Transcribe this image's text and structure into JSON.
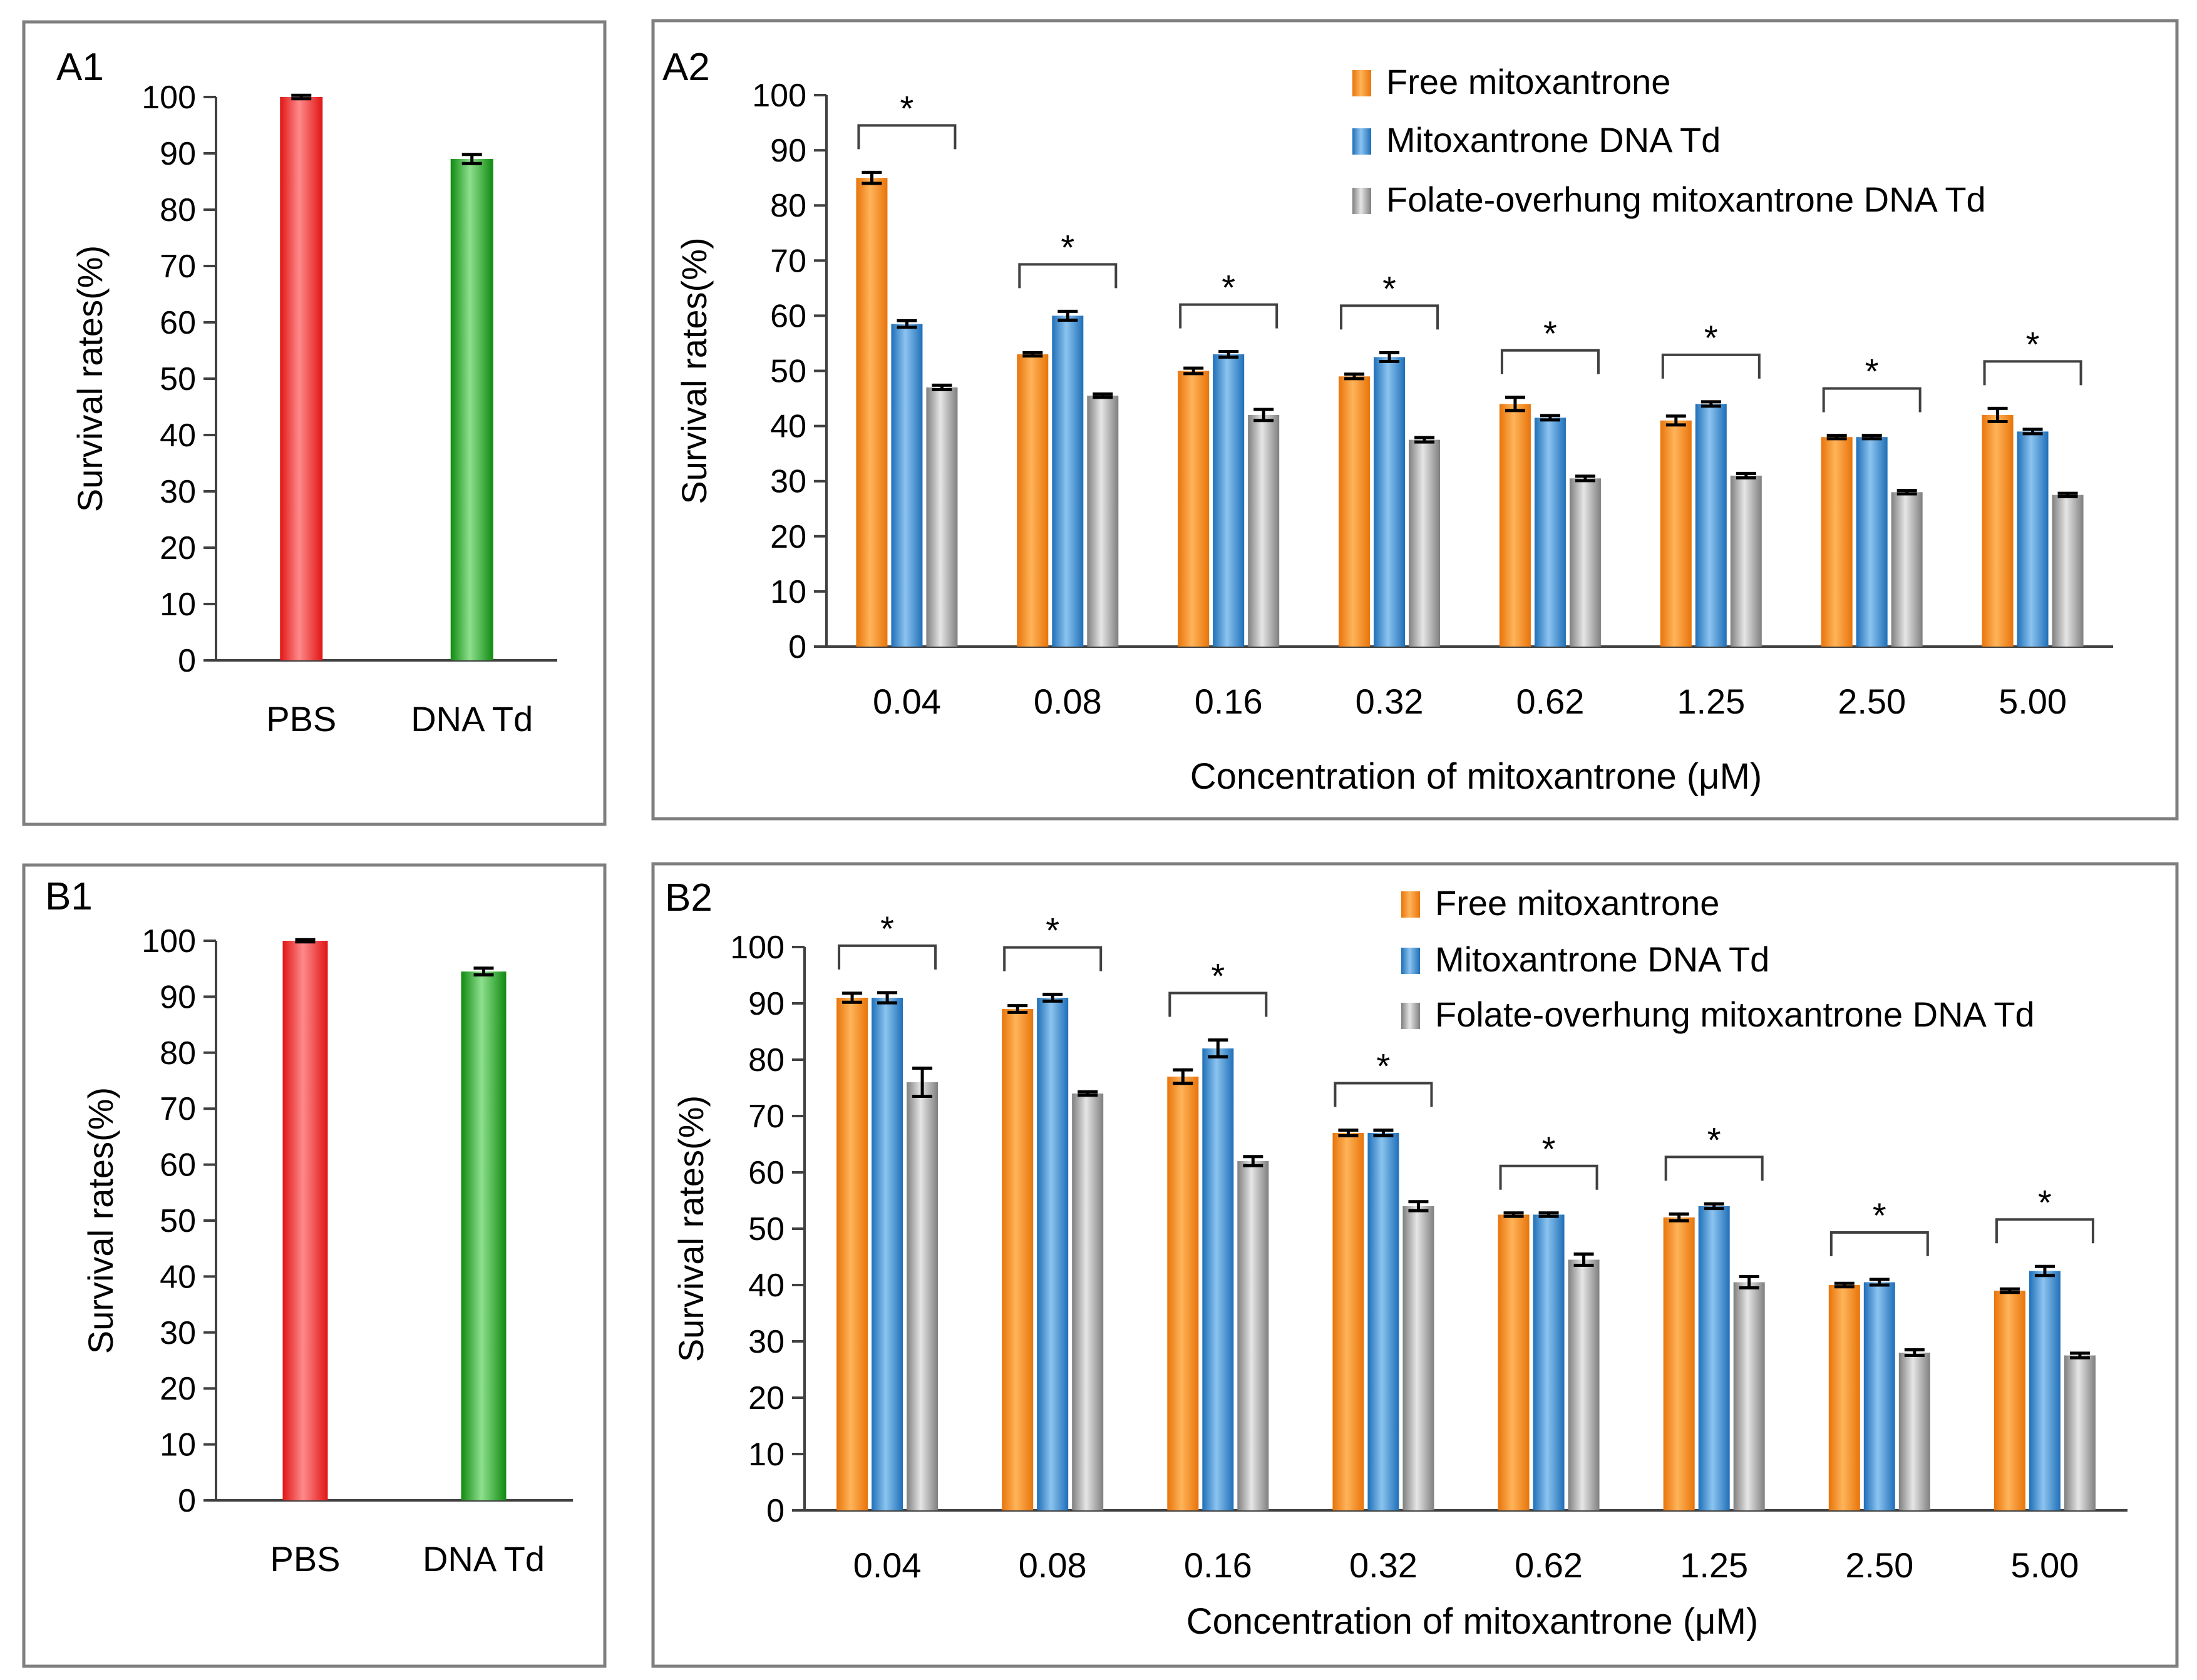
{
  "colors": {
    "free": "#f58a1f",
    "td": "#3a8fd6",
    "folate": "#a6a6a6",
    "pbs": "#ee2a2a",
    "dna_td": "#2aa42a"
  },
  "chart_data": [
    {
      "id": "A1",
      "panel_label": "A1",
      "type": "bar",
      "categories": [
        "PBS",
        "DNA Td"
      ],
      "values": [
        100,
        89
      ],
      "errors": [
        0.3,
        0.8
      ],
      "bar_colors": [
        "pbs",
        "dna_td"
      ],
      "ylabel": "Survival rates(%)",
      "xlabel": "",
      "ylim": [
        0,
        100
      ],
      "yticks": [
        "0",
        "10",
        "20",
        "30",
        "40",
        "50",
        "60",
        "70",
        "80",
        "90",
        "100"
      ]
    },
    {
      "id": "A2",
      "panel_label": "A2",
      "type": "bar",
      "categories": [
        "0.04",
        "0.08",
        "0.16",
        "0.32",
        "0.62",
        "1.25",
        "2.50",
        "5.00"
      ],
      "series": [
        {
          "name": "Free mitoxantrone",
          "color_key": "free",
          "values": [
            85,
            53,
            50,
            49,
            44,
            41,
            38,
            42
          ],
          "errors": [
            1,
            0.3,
            0.5,
            0.4,
            1.2,
            0.8,
            0.3,
            1.2
          ]
        },
        {
          "name": "Mitoxantrone DNA Td",
          "color_key": "td",
          "values": [
            58.5,
            60,
            53,
            52.5,
            41.5,
            44,
            38,
            39
          ],
          "errors": [
            0.6,
            0.8,
            0.5,
            0.8,
            0.4,
            0.4,
            0.3,
            0.4
          ]
        },
        {
          "name": "Folate-overhung mitoxantrone DNA Td",
          "color_key": "folate",
          "values": [
            47,
            45.5,
            42,
            37.5,
            30.5,
            31,
            28,
            27.5
          ],
          "errors": [
            0.4,
            0.3,
            1,
            0.4,
            0.4,
            0.4,
            0.3,
            0.3
          ]
        }
      ],
      "significance": [
        "*",
        "*",
        "*",
        "*",
        "*",
        "*",
        "*",
        "*"
      ],
      "ylabel": "Survival rates(%)",
      "xlabel": "Concentration of  mitoxantrone (μM)",
      "ylim": [
        0,
        100
      ],
      "yticks": [
        "0",
        "10",
        "20",
        "30",
        "40",
        "50",
        "60",
        "70",
        "80",
        "90",
        "100"
      ]
    },
    {
      "id": "B1",
      "panel_label": "B1",
      "type": "bar",
      "categories": [
        "PBS",
        "DNA Td"
      ],
      "values": [
        100,
        94.5
      ],
      "errors": [
        0.2,
        0.6
      ],
      "bar_colors": [
        "pbs",
        "dna_td"
      ],
      "ylabel": "Survival rates(%)",
      "xlabel": "",
      "ylim": [
        0,
        100
      ],
      "yticks": [
        "0",
        "10",
        "20",
        "30",
        "40",
        "50",
        "60",
        "70",
        "80",
        "90",
        "100"
      ]
    },
    {
      "id": "B2",
      "panel_label": "B2",
      "type": "bar",
      "categories": [
        "0.04",
        "0.08",
        "0.16",
        "0.32",
        "0.62",
        "1.25",
        "2.50",
        "5.00"
      ],
      "series": [
        {
          "name": "Free mitoxantrone",
          "color_key": "free",
          "values": [
            91,
            89,
            77,
            67,
            52.5,
            52,
            40,
            39
          ],
          "errors": [
            0.8,
            0.6,
            1.2,
            0.5,
            0.3,
            0.6,
            0.3,
            0.3
          ]
        },
        {
          "name": "Mitoxantrone DNA Td",
          "color_key": "td",
          "values": [
            91,
            91,
            82,
            67,
            52.5,
            54,
            40.5,
            42.5
          ],
          "errors": [
            0.9,
            0.6,
            1.5,
            0.5,
            0.3,
            0.4,
            0.5,
            0.8
          ]
        },
        {
          "name": "Folate-overhung mitoxantrone DNA Td",
          "color_key": "folate",
          "values": [
            76,
            74,
            62,
            54,
            44.5,
            40.5,
            28,
            27.5
          ],
          "errors": [
            2.5,
            0.3,
            0.8,
            0.8,
            1,
            1,
            0.5,
            0.4
          ]
        }
      ],
      "significance": [
        "*",
        "*",
        "*",
        "*",
        "*",
        "*",
        "*",
        "*"
      ],
      "ylabel": "Survival rates(%)",
      "xlabel": "Concentration of  mitoxantrone (μM)",
      "ylim": [
        0,
        100
      ],
      "yticks": [
        "0",
        "10",
        "20",
        "30",
        "40",
        "50",
        "60",
        "70",
        "80",
        "90",
        "100"
      ]
    }
  ]
}
